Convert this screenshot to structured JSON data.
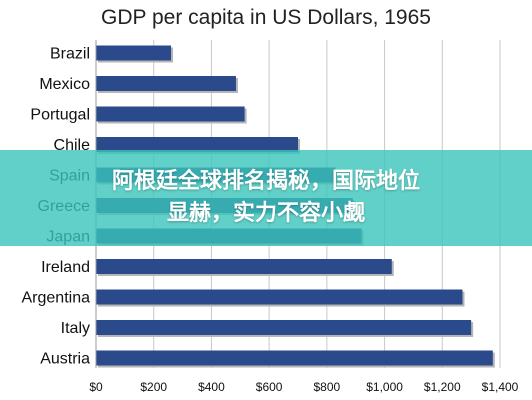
{
  "chart_data": {
    "type": "bar",
    "orientation": "horizontal",
    "title": "GDP per capita in US Dollars, 1965",
    "categories": [
      "Brazil",
      "Mexico",
      "Portugal",
      "Chile",
      "Spain",
      "Greece",
      "Japan",
      "Ireland",
      "Argentina",
      "Italy",
      "Austria"
    ],
    "values": [
      260,
      485,
      515,
      700,
      830,
      890,
      920,
      1025,
      1270,
      1300,
      1375
    ],
    "xlim": [
      0,
      1400
    ],
    "xticks": [
      "$0",
      "$200",
      "$400",
      "$600",
      "$800",
      "$1,000",
      "$1,200",
      "$1,400"
    ],
    "grid": true,
    "bar_color": "#2b4a8c"
  },
  "banner": {
    "line1": "阿根廷全球排名揭秘，国际地位",
    "line2": "显赫，实力不容小觑",
    "color": "#3ac4ba"
  }
}
